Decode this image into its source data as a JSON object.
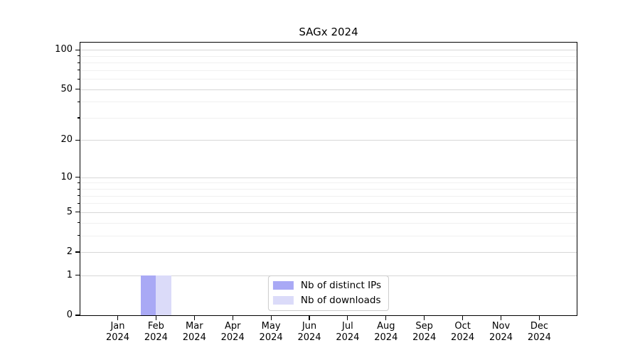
{
  "title": "SAGx 2024",
  "chart_data": {
    "type": "bar",
    "title": "SAGx 2024",
    "categories": [
      "Jan 2024",
      "Feb 2024",
      "Mar 2024",
      "Apr 2024",
      "May 2024",
      "Jun 2024",
      "Jul 2024",
      "Aug 2024",
      "Sep 2024",
      "Oct 2024",
      "Nov 2024",
      "Dec 2024"
    ],
    "series": [
      {
        "name": "Nb of distinct IPs",
        "color": "#a9a9f5",
        "values": [
          0,
          1,
          0,
          0,
          0,
          0,
          0,
          0,
          0,
          0,
          0,
          0
        ]
      },
      {
        "name": "Nb of downloads",
        "color": "#dbdbf9",
        "values": [
          0,
          1,
          0,
          0,
          0,
          0,
          0,
          0,
          0,
          0,
          0,
          0
        ]
      }
    ],
    "xlabel": "",
    "ylabel": "",
    "yscale": "log1p",
    "ylim": [
      0,
      113
    ],
    "y_major_ticks": [
      0,
      1,
      2,
      5,
      10,
      20,
      50,
      100
    ],
    "y_minor_ticks": [
      3,
      4,
      6,
      7,
      8,
      9,
      30,
      40,
      60,
      70,
      80,
      90
    ],
    "grid": true,
    "legend_position": "lower center"
  }
}
